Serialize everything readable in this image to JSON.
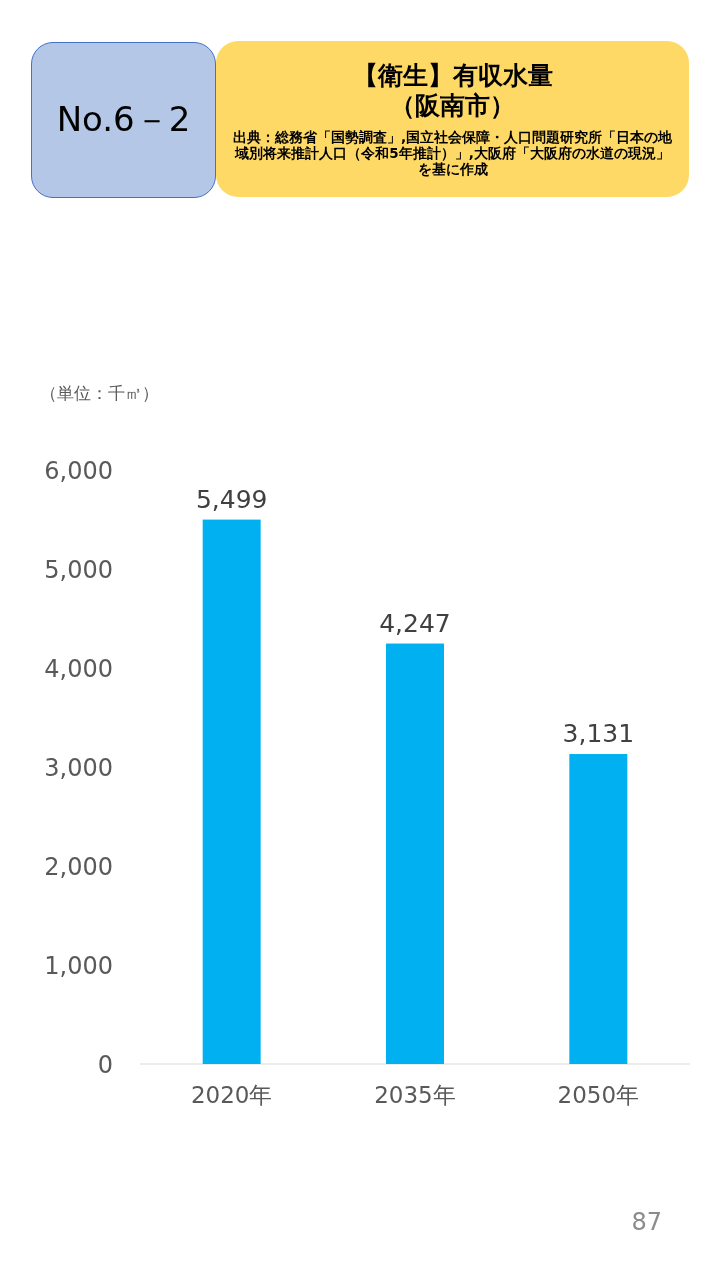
{
  "chart_data": {
    "type": "bar",
    "title": "【衛生】有収水量",
    "subtitle": "（阪南市）",
    "ylabel": "（単位：千㎥）",
    "categories": [
      "2020年",
      "2035年",
      "2050年"
    ],
    "values": [
      5499,
      4247,
      3131
    ],
    "color": "#00b0f0",
    "ylim": [
      0,
      6000
    ],
    "yticks": [
      {
        "value": 0,
        "label": "0"
      },
      {
        "value": 1000,
        "label": "1,000"
      },
      {
        "value": 2000,
        "label": "2,000"
      },
      {
        "value": 3000,
        "label": "3,000"
      },
      {
        "value": 4000,
        "label": "4,000"
      },
      {
        "value": 5000,
        "label": "5,000"
      },
      {
        "value": 6000,
        "label": "6,000"
      }
    ],
    "value_labels": [
      "5,499",
      "4,247",
      "3,131"
    ],
    "annotations": [
      "No.6－2",
      "出典：総務省「国勢調査」,国立社会保障・人口問題研究所「日本の地域別将来推計人口（令和5年推計）」,大阪府「大阪府の水道の現況」を基に作成",
      "87"
    ]
  }
}
